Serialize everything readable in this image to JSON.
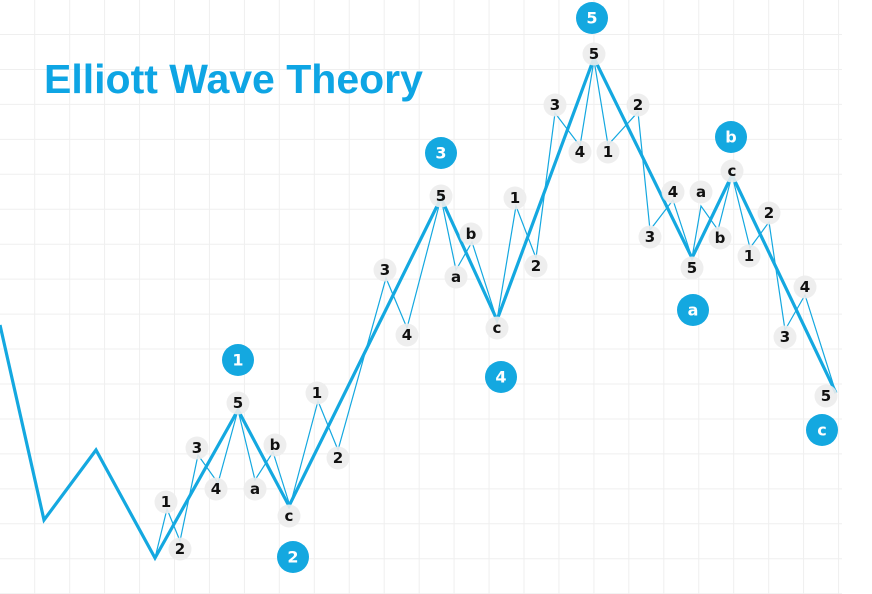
{
  "title": "Elliott Wave Theory",
  "colors": {
    "accent": "#14a8e0",
    "grid": "#efefef",
    "label_bg": "#ececec",
    "title": "#0ea5e4"
  },
  "wave_labels": [
    "1",
    "2",
    "3",
    "4",
    "5",
    "a",
    "b",
    "c"
  ],
  "sub_labels": [
    "1",
    "2",
    "3",
    "4",
    "5",
    "a",
    "b",
    "c",
    "1",
    "2",
    "3",
    "4",
    "5",
    "a",
    "b",
    "c",
    "1",
    "2",
    "3",
    "4",
    "5",
    "1",
    "2",
    "3",
    "4",
    "5",
    "a",
    "b",
    "c",
    "1",
    "2",
    "3",
    "4",
    "5"
  ]
}
